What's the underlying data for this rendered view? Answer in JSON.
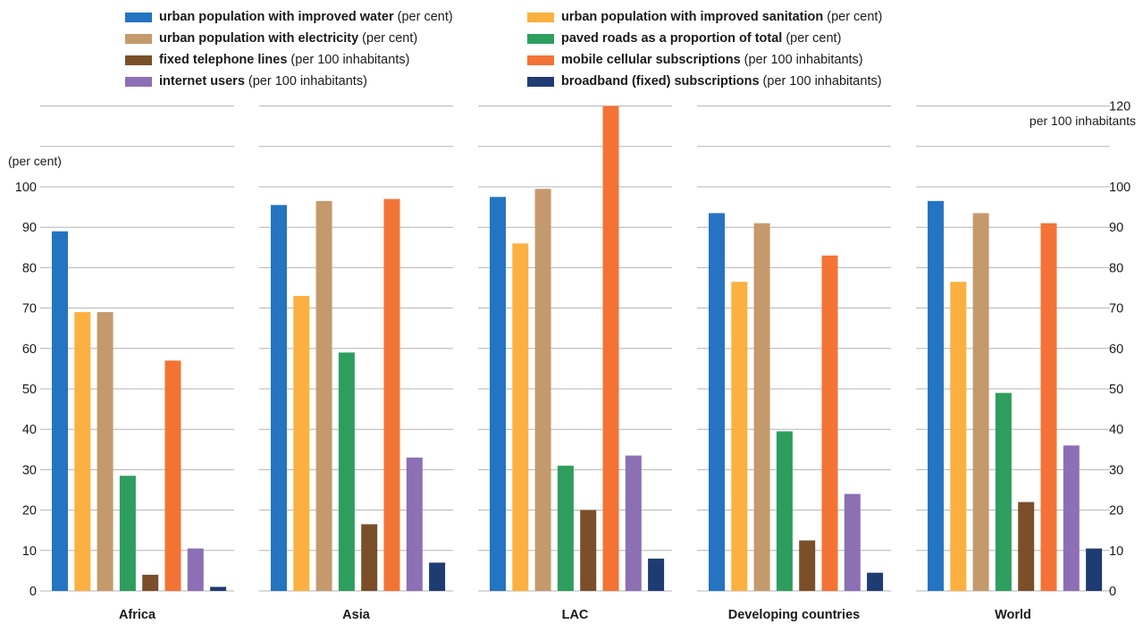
{
  "chart_data": {
    "type": "bar",
    "left_axis_label": "(per cent)",
    "right_axis_label": "per 100 inhabitants",
    "left_ylim": [
      0,
      100
    ],
    "left_ticks": [
      0,
      10,
      20,
      30,
      40,
      50,
      60,
      70,
      80,
      90,
      100
    ],
    "right_ylim": [
      0,
      120
    ],
    "right_ticks": [
      0,
      10,
      20,
      30,
      40,
      50,
      60,
      70,
      80,
      90,
      100,
      110,
      120
    ],
    "grid": true,
    "legend_position": "top",
    "categories": [
      "Africa",
      "Asia",
      "LAC",
      "Developing countries",
      "World"
    ],
    "series": [
      {
        "name": "urban population with improved water",
        "unit": "(per cent)",
        "color": "#2474c2",
        "values": [
          89,
          95.5,
          97.5,
          93.5,
          96.5
        ]
      },
      {
        "name": "urban population with improved sanitation",
        "unit": "(per cent)",
        "color": "#fbb040",
        "values": [
          69,
          73,
          86,
          76.5,
          76.5
        ]
      },
      {
        "name": "urban population with electricity",
        "unit": "(per cent)",
        "color": "#c49a6c",
        "values": [
          69,
          96.5,
          99.5,
          91,
          93.5
        ]
      },
      {
        "name": "paved roads as a proportion of total",
        "unit": "(per cent)",
        "color": "#2e9e5e",
        "values": [
          28.5,
          59,
          31,
          39.5,
          49
        ]
      },
      {
        "name": "fixed telephone lines",
        "unit": "(per 100 inhabitants)",
        "color": "#7a4f2a",
        "values": [
          4,
          16.5,
          20,
          12.5,
          22
        ]
      },
      {
        "name": "mobile cellular subscriptions",
        "unit": "(per 100 inhabitants)",
        "color": "#f37335",
        "values": [
          57,
          97,
          120,
          83,
          91
        ]
      },
      {
        "name": "internet users",
        "unit": "(per 100 inhabitants)",
        "color": "#8c6fb5",
        "values": [
          10.5,
          33,
          33.5,
          24,
          36
        ]
      },
      {
        "name": "broadband (fixed) subscriptions",
        "unit": "(per 100 inhabitants)",
        "color": "#1f3b73",
        "values": [
          1,
          7,
          8,
          4.5,
          10.5
        ]
      }
    ]
  }
}
